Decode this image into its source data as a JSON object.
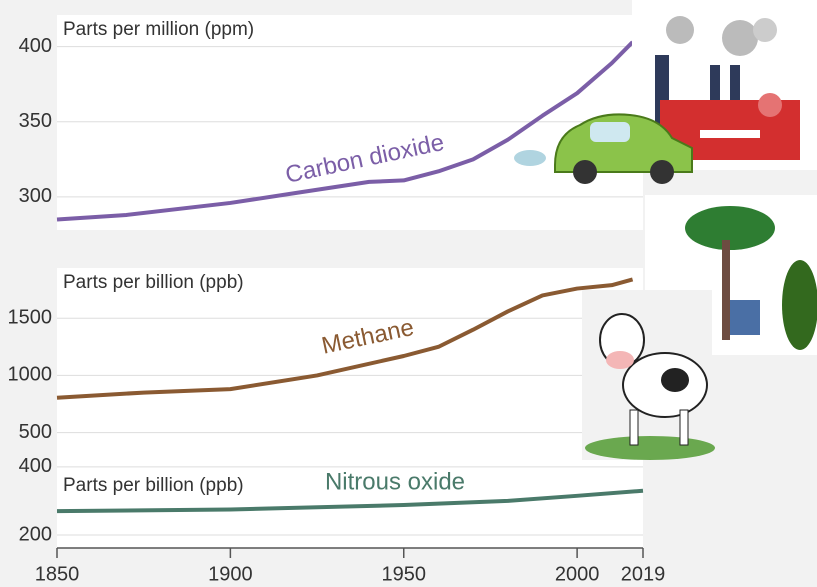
{
  "chart_data": [
    {
      "type": "line",
      "ylabel": "Parts per million (ppm)",
      "x": [
        1850,
        1870,
        1900,
        1920,
        1940,
        1950,
        1960,
        1970,
        1980,
        1990,
        2000,
        2010,
        2016
      ],
      "series": [
        {
          "name": "Carbon dioxide",
          "color": "#7b5ea7",
          "values": [
            285,
            288,
            296,
            303,
            310,
            311,
            317,
            325,
            338,
            354,
            369,
            389,
            403
          ]
        }
      ],
      "xlim": [
        1850,
        2019
      ],
      "ylim": [
        278,
        421
      ],
      "yticks": [
        300,
        350,
        400
      ],
      "grid": true
    },
    {
      "type": "line",
      "ylabel": "Parts per billion (ppb)",
      "x": [
        1850,
        1875,
        1900,
        1925,
        1950,
        1960,
        1970,
        1980,
        1990,
        2000,
        2010,
        2016
      ],
      "series": [
        {
          "name": "Methane",
          "color": "#8a5a32",
          "values": [
            805,
            850,
            880,
            1000,
            1170,
            1250,
            1400,
            1560,
            1700,
            1760,
            1790,
            1840
          ]
        }
      ],
      "xlim": [
        1850,
        2019
      ],
      "ylim": [
        260,
        1940
      ],
      "yticks": [
        500,
        1000,
        1500
      ],
      "grid": true
    },
    {
      "type": "line",
      "ylabel": "Parts per billion (ppb)",
      "x": [
        1850,
        1900,
        1950,
        1980,
        2000,
        2019
      ],
      "series": [
        {
          "name": "Nitrous oxide",
          "color": "#4a7a6a",
          "values": [
            270,
            275,
            288,
            300,
            315,
            330
          ]
        }
      ],
      "xlim": [
        1850,
        2019
      ],
      "ylim": [
        162,
        420
      ],
      "yticks": [
        200,
        400
      ],
      "xticks": [
        1850,
        1900,
        1950,
        2000,
        2019
      ],
      "grid": true
    }
  ]
}
